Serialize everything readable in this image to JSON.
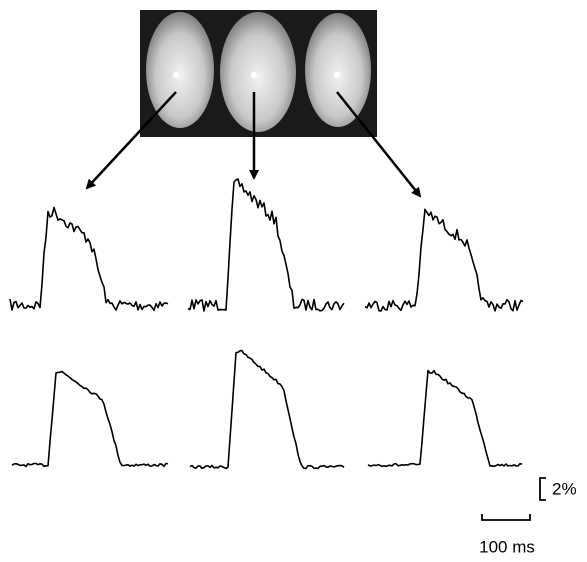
{
  "figure": {
    "scale_bar": {
      "amplitude_label": "2%",
      "time_label": "100 ms"
    }
  }
}
